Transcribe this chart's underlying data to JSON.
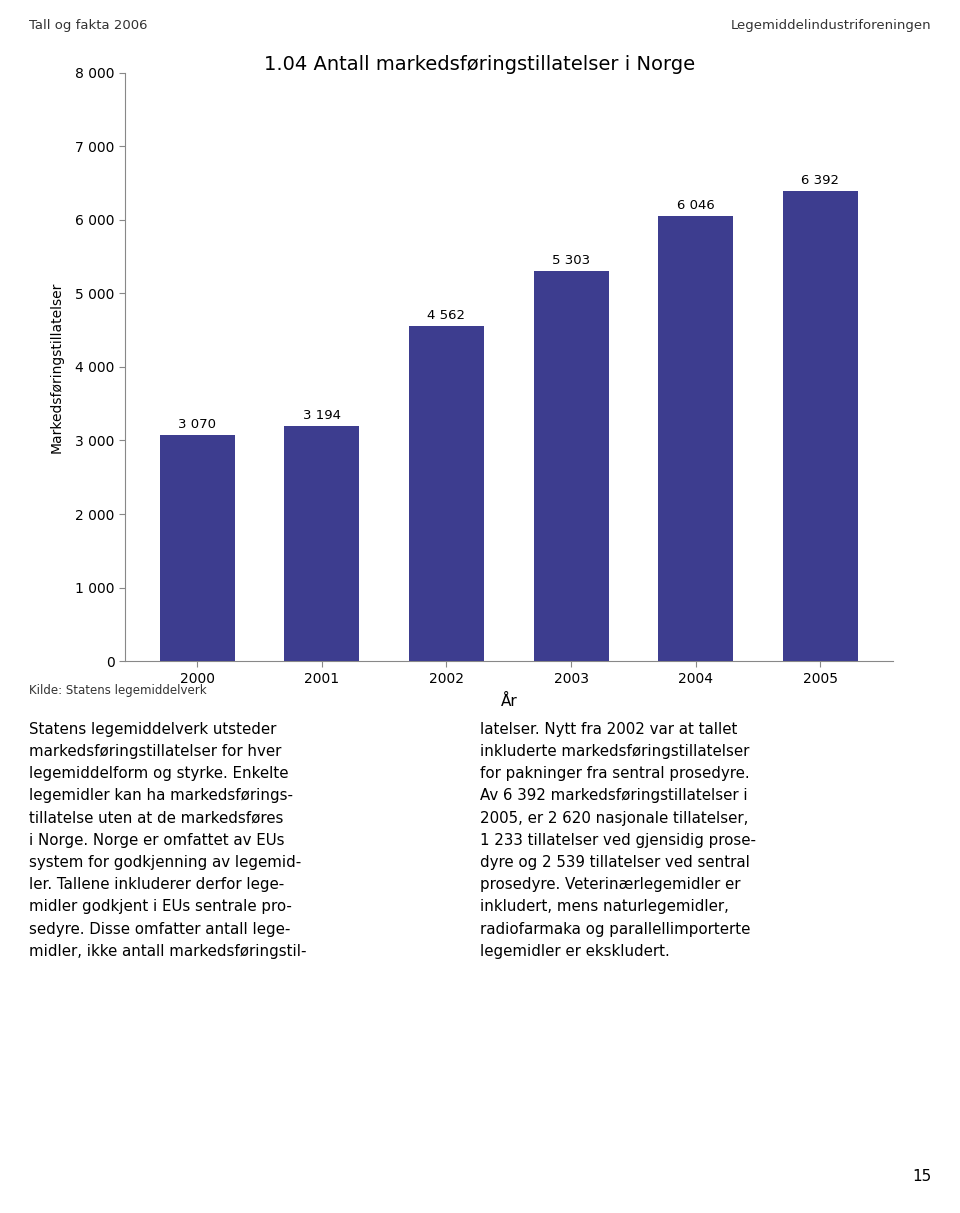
{
  "title": "1.04 Antall markedsføringstillatelser i Norge",
  "header_left": "Tall og fakta 2006",
  "header_right": "Legemiddelindustriforeningen",
  "years": [
    2000,
    2001,
    2002,
    2003,
    2004,
    2005
  ],
  "values": [
    3070,
    3194,
    4562,
    5303,
    6046,
    6392
  ],
  "bar_color": "#3d3d8f",
  "ylabel": "Markedsføringstillatelser",
  "xlabel": "År",
  "ylim": [
    0,
    8000
  ],
  "yticks": [
    0,
    1000,
    2000,
    3000,
    4000,
    5000,
    6000,
    7000,
    8000
  ],
  "ytick_labels": [
    "0",
    "1 000",
    "2 000",
    "3 000",
    "4 000",
    "5 000",
    "6 000",
    "7 000",
    "8 000"
  ],
  "value_labels": [
    "3 070",
    "3 194",
    "4 562",
    "5 303",
    "6 046",
    "6 392"
  ],
  "source": "Kilde: Statens legemiddelverk",
  "body_left_text": "Statens legemiddelverk utsteder\nmarkedsføringstillatelser for hver\nlegemiddelform og styrke. Enkelte\nlegemidler kan ha markedsførings-\ntillatelse uten at de markedsføres\ni Norge. Norge er omfattet av EUs\nsystem for godkjenning av legemid-\nler. Tallene inkluderer derfor lege-\nmidler godkjent i EUs sentrale pro-\nsedyre. Disse omfatter antall lege-\nmidler, ikke antall markedsføringstil-",
  "body_right_text": "latelser. Nytt fra 2002 var at tallet\ninkluderte markedsføringstillatelser\nfor pakninger fra sentral prosedyre.\nAv 6 392 markedsføringstillatelser i\n2005, er 2 620 nasjonale tillatelser,\n1 233 tillatelser ved gjensidig prose-\ndyre og 2 539 tillatelser ved sentral\nprosedyre. Veterinærlegemidler er\ninkludert, mens naturlegemidler,\nradiofarmaka og parallellimporterte\nlegemidler er ekskludert.",
  "page_number": "15",
  "background_color": "#ffffff",
  "header_line_color": "#888888",
  "axis_line_color": "#888888",
  "text_color": "#000000",
  "bar_width": 0.6
}
